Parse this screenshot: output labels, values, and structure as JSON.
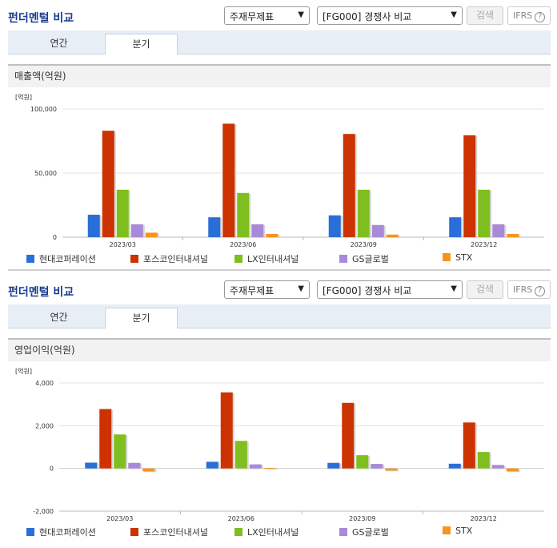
{
  "panels": [
    {
      "title": "펀더멘털 비교",
      "select1": "주재무제표",
      "select2": "[FG000] 경쟁사 비교",
      "search_label": "검색",
      "ifrs_label": "IFRS",
      "help_icon": "?",
      "tabs": [
        {
          "label": "연간"
        },
        {
          "label": "분기"
        }
      ],
      "active_tab": "분기",
      "section_label": "매출액(억원)"
    },
    {
      "title": "펀더멘털 비교",
      "select1": "주재무제표",
      "select2": "[FG000] 경쟁사 비교",
      "search_label": "검색",
      "ifrs_label": "IFRS",
      "help_icon": "?",
      "tabs": [
        {
          "label": "연간"
        },
        {
          "label": "분기"
        }
      ],
      "active_tab": "분기",
      "section_label": "영업이익(억원)"
    }
  ],
  "chart_data": [
    {
      "type": "bar",
      "title": "매출액(억원)",
      "unit_label": "[억원]",
      "categories": [
        "2023/03",
        "2023/06",
        "2023/09",
        "2023/12"
      ],
      "ylim": [
        0,
        100000
      ],
      "yticks": [
        0,
        50000,
        100000
      ],
      "ytick_labels": [
        "0",
        "50,000",
        "100,000"
      ],
      "grid": true,
      "legend_position": "bottom",
      "series": [
        {
          "name": "현대코퍼레이션",
          "color": "#2a6ed8",
          "values": [
            17500,
            15500,
            17000,
            15500
          ]
        },
        {
          "name": "포스코인터내셔널",
          "color": "#cc3300",
          "values": [
            83000,
            88500,
            80500,
            79500
          ]
        },
        {
          "name": "LX인터내셔널",
          "color": "#7fbf1f",
          "values": [
            37000,
            34500,
            37000,
            37000
          ]
        },
        {
          "name": "GS글로벌",
          "color": "#a98ad8",
          "values": [
            10000,
            10000,
            9500,
            10000
          ]
        },
        {
          "name": "STX",
          "color": "#f7941d",
          "values": [
            3500,
            2500,
            2000,
            2500
          ]
        }
      ]
    },
    {
      "type": "bar",
      "title": "영업이익(억원)",
      "unit_label": "[억원]",
      "categories": [
        "2023/03",
        "2023/06",
        "2023/09",
        "2023/12"
      ],
      "ylim": [
        -2000,
        4000
      ],
      "yticks": [
        -2000,
        0,
        2000,
        4000
      ],
      "ytick_labels": [
        "-2,000",
        "0",
        "2,000",
        "4,000"
      ],
      "grid": true,
      "legend_position": "bottom",
      "series": [
        {
          "name": "현대코퍼레이션",
          "color": "#2a6ed8",
          "values": [
            270,
            310,
            260,
            220
          ]
        },
        {
          "name": "포스코인터내셔널",
          "color": "#cc3300",
          "values": [
            2780,
            3560,
            3070,
            2150
          ]
        },
        {
          "name": "LX인터내셔널",
          "color": "#7fbf1f",
          "values": [
            1590,
            1290,
            620,
            770
          ]
        },
        {
          "name": "GS글로벌",
          "color": "#a98ad8",
          "values": [
            260,
            190,
            210,
            160
          ]
        },
        {
          "name": "STX",
          "color": "#f7941d",
          "values": [
            -140,
            20,
            -100,
            -140
          ]
        }
      ]
    }
  ]
}
